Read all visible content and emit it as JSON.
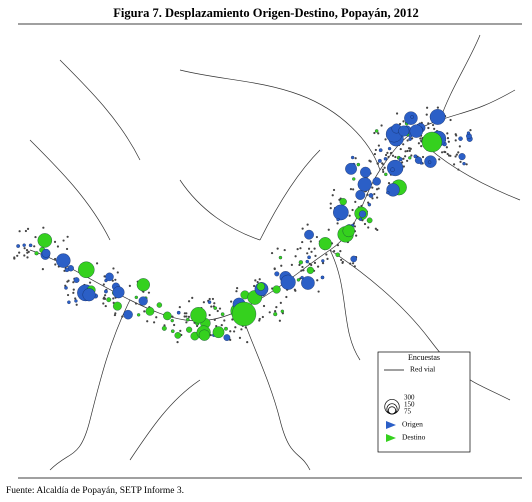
{
  "header": {
    "title": "Figura 7. Desplazamiento Origen-Destino, Popayán, 2012"
  },
  "legend": {
    "title": "Encuestas",
    "road": "Red vial",
    "sizes": [
      300,
      150,
      75
    ],
    "origin": "Origen",
    "destination": "Destino"
  },
  "source": "Fuente: Alcaldía de Popayán, SETP Informe 3."
}
